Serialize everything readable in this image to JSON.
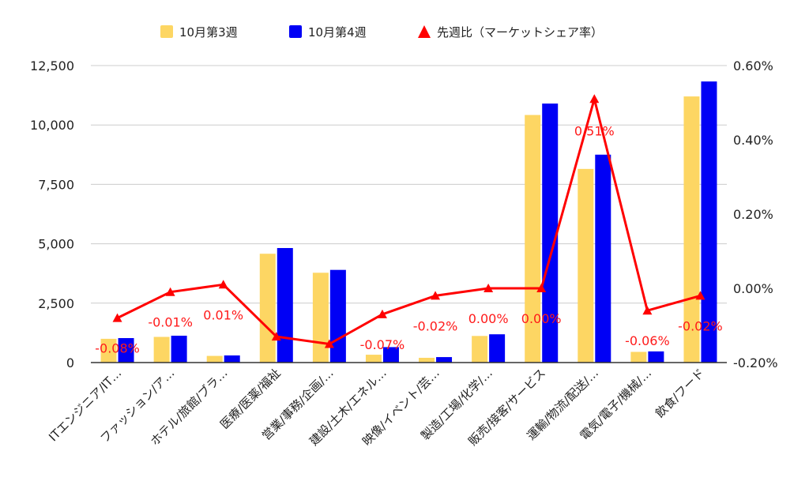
{
  "chart_data": {
    "type": "bar",
    "categories": [
      "ITエンジニア/IT…",
      "ファッション/ア…",
      "ホテル/旅館/ブラ…",
      "医療/医薬/福祉",
      "営業/事務/企画/…",
      "建設/土木/エネル…",
      "映像/イベント/芸…",
      "製造/工場/化学/…",
      "販売/接客/サービス",
      "運輸/物流/配送/…",
      "電気/電子/機械/…",
      "飲食/フード"
    ],
    "series": [
      {
        "name": "10月第3週",
        "type": "bar",
        "axis": "left",
        "color": "#fdd663",
        "values": [
          1000,
          1080,
          280,
          4580,
          3780,
          330,
          200,
          1120,
          10420,
          8150,
          450,
          11200
        ]
      },
      {
        "name": "10月第4週",
        "type": "bar",
        "axis": "left",
        "color": "#0000f5",
        "values": [
          1030,
          1130,
          300,
          4820,
          3900,
          650,
          230,
          1190,
          10900,
          8750,
          470,
          11830
        ]
      },
      {
        "name": "先週比（マーケットシェア率）",
        "type": "line",
        "axis": "right",
        "color": "#ff0000",
        "marker": "triangle",
        "values": [
          -0.08,
          -0.01,
          0.01,
          -0.13,
          -0.15,
          -0.07,
          -0.02,
          0.0,
          0.0,
          0.51,
          -0.06,
          -0.02
        ],
        "labels": [
          "-0.08%",
          "-0.01%",
          "0.01%",
          "",
          "",
          "-0.07%",
          "-0.02%",
          "0.00%",
          "0.00%",
          "0.51%",
          "-0.06%",
          "-0.02%"
        ]
      }
    ],
    "yleft": {
      "min": 0,
      "max": 12500,
      "ticks": [
        0,
        2500,
        5000,
        7500,
        10000,
        12500
      ],
      "tick_labels": [
        "0",
        "2,500",
        "5,000",
        "7,500",
        "10,000",
        "12,500"
      ]
    },
    "yright": {
      "min": -0.2,
      "max": 0.6,
      "ticks": [
        -0.2,
        0.0,
        0.2,
        0.4,
        0.6
      ],
      "tick_labels": [
        "-0.20%",
        "0.00%",
        "0.20%",
        "0.40%",
        "0.60%"
      ]
    },
    "grid": true,
    "legend_position": "top"
  }
}
